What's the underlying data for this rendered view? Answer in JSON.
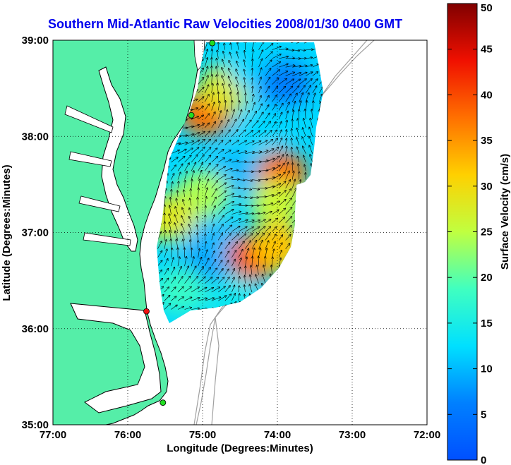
{
  "chart_data": {
    "type": "heatmap",
    "title": "Southern Mid-Atlantic Raw Velocities 2008/01/30 0400 GMT",
    "xlabel": "Longitude (Degrees:Minutes)",
    "ylabel": "Latitude (Degrees:Minutes)",
    "xlim": [
      -77,
      -72
    ],
    "ylim": [
      35,
      39
    ],
    "x_ticks": [
      {
        "value": -77,
        "label": "77:00"
      },
      {
        "value": -76,
        "label": "76:00"
      },
      {
        "value": -75,
        "label": "75:00"
      },
      {
        "value": -74,
        "label": "74:00"
      },
      {
        "value": -73,
        "label": "73:00"
      },
      {
        "value": -72,
        "label": "72:00"
      }
    ],
    "y_ticks": [
      {
        "value": 35,
        "label": "35:00"
      },
      {
        "value": 36,
        "label": "36:00"
      },
      {
        "value": 37,
        "label": "37:00"
      },
      {
        "value": 38,
        "label": "38:00"
      },
      {
        "value": 39,
        "label": "39:00"
      }
    ],
    "grid": true,
    "colorbar": {
      "label": "Surface Velocity (cm/s)",
      "range": [
        0,
        50
      ],
      "ticks": [
        0,
        5,
        10,
        15,
        20,
        25,
        30,
        35,
        40,
        45,
        50
      ],
      "colormap": "jet",
      "placement": "right"
    },
    "land_color": "#55eea8",
    "coast_color": "#000000",
    "bathymetry_color": "#a0a0a0",
    "velocity_regions": [
      {
        "lon": -74.95,
        "lat": 38.25,
        "speed": 38
      },
      {
        "lon": -74.7,
        "lat": 38.5,
        "speed": 28
      },
      {
        "lon": -74.3,
        "lat": 38.7,
        "speed": 12
      },
      {
        "lon": -73.9,
        "lat": 38.55,
        "speed": 6
      },
      {
        "lon": -74.2,
        "lat": 38.1,
        "speed": 12
      },
      {
        "lon": -73.95,
        "lat": 37.6,
        "speed": 38
      },
      {
        "lon": -74.0,
        "lat": 37.3,
        "speed": 26
      },
      {
        "lon": -74.6,
        "lat": 37.6,
        "speed": 10
      },
      {
        "lon": -75.0,
        "lat": 37.4,
        "speed": 24
      },
      {
        "lon": -74.9,
        "lat": 36.9,
        "speed": 10
      },
      {
        "lon": -74.3,
        "lat": 36.75,
        "speed": 40
      },
      {
        "lon": -74.0,
        "lat": 36.85,
        "speed": 32
      },
      {
        "lon": -75.05,
        "lat": 36.55,
        "speed": 8
      },
      {
        "lon": -75.3,
        "lat": 36.4,
        "speed": 18
      },
      {
        "lon": -75.45,
        "lat": 37.15,
        "speed": 28
      },
      {
        "lon": -74.6,
        "lat": 36.3,
        "speed": 14
      }
    ],
    "stations": [
      {
        "lon": -74.87,
        "lat": 38.97,
        "color": "#22dd22"
      },
      {
        "lon": -75.15,
        "lat": 38.22,
        "color": "#22dd22"
      },
      {
        "lon": -75.75,
        "lat": 36.18,
        "color": "#ee1111"
      },
      {
        "lon": -75.53,
        "lat": 35.23,
        "color": "#22dd22"
      }
    ]
  }
}
